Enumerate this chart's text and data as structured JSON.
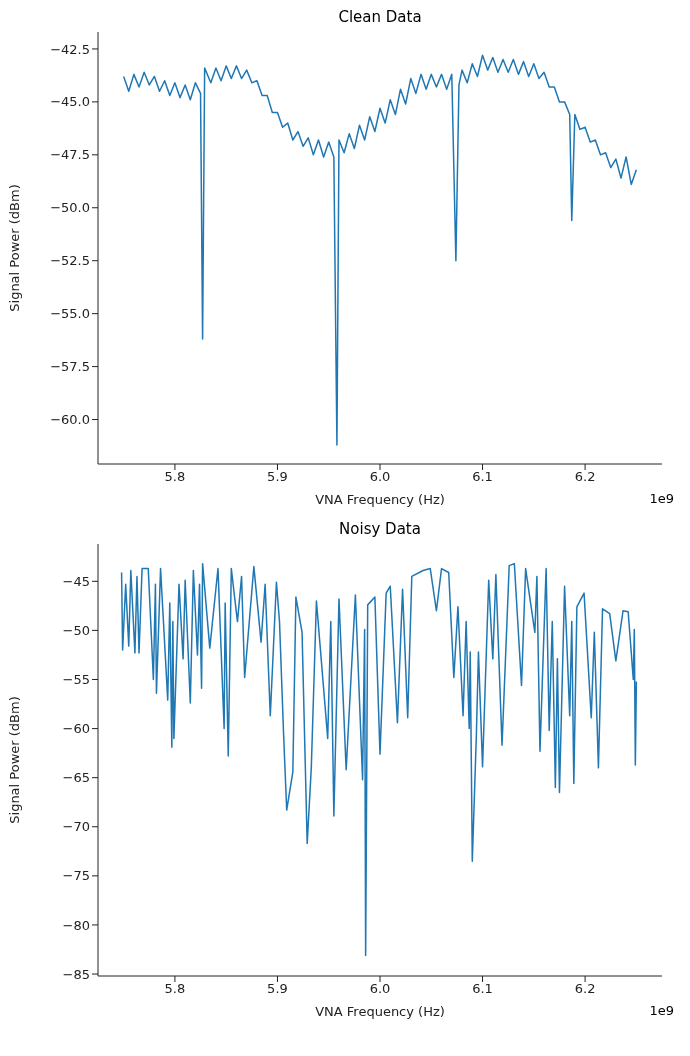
{
  "chart_data": [
    {
      "type": "line",
      "title": "Clean Data",
      "xlabel": "VNA Frequency (Hz)",
      "ylabel": "Signal Power (dBm)",
      "annotations": [
        "1e9"
      ],
      "xlim": [
        5.725,
        6.275
      ],
      "xticks": [
        5.8,
        5.9,
        {
          "value": 6.0,
          "label": "6.0"
        },
        6.1,
        6.2
      ],
      "ylim": [
        -62.1,
        -41.7
      ],
      "yticks": [
        {
          "value": -60,
          "label": "−60.0"
        },
        {
          "value": -57.5,
          "label": "−57.5"
        },
        {
          "value": -55,
          "label": "−55.0"
        },
        {
          "value": -52.5,
          "label": "−52.5"
        },
        {
          "value": -50,
          "label": "−50.0"
        },
        {
          "value": -47.5,
          "label": "−47.5"
        },
        {
          "value": -45,
          "label": "−45.0"
        },
        {
          "value": -42.5,
          "label": "−42.5"
        }
      ],
      "series": [
        {
          "color": "#1f77b4",
          "x": [
            5.75,
            5.755,
            5.76,
            5.765,
            5.77,
            5.775,
            5.78,
            5.785,
            5.79,
            5.795,
            5.8,
            5.805,
            5.81,
            5.815,
            5.82,
            5.825,
            5.827,
            5.829,
            5.835,
            5.84,
            5.845,
            5.85,
            5.855,
            5.86,
            5.865,
            5.87,
            5.875,
            5.88,
            5.885,
            5.89,
            5.895,
            5.9,
            5.905,
            5.91,
            5.915,
            5.92,
            5.925,
            5.93,
            5.935,
            5.94,
            5.945,
            5.95,
            5.955,
            5.958,
            5.96,
            5.965,
            5.97,
            5.975,
            5.98,
            5.985,
            5.99,
            5.995,
            6.0,
            6.005,
            6.01,
            6.015,
            6.02,
            6.025,
            6.03,
            6.035,
            6.04,
            6.045,
            6.05,
            6.055,
            6.06,
            6.065,
            6.07,
            6.074,
            6.077,
            6.08,
            6.085,
            6.09,
            6.095,
            6.1,
            6.105,
            6.11,
            6.115,
            6.12,
            6.125,
            6.13,
            6.135,
            6.14,
            6.145,
            6.15,
            6.155,
            6.16,
            6.165,
            6.17,
            6.175,
            6.18,
            6.185,
            6.187,
            6.19,
            6.195,
            6.2,
            6.205,
            6.21,
            6.215,
            6.22,
            6.225,
            6.23,
            6.235,
            6.24,
            6.245,
            6.25
          ],
          "values": [
            -43.8,
            -44.5,
            -43.7,
            -44.3,
            -43.6,
            -44.2,
            -43.8,
            -44.5,
            -44.0,
            -44.7,
            -44.1,
            -44.8,
            -44.2,
            -44.9,
            -44.1,
            -44.6,
            -56.2,
            -43.4,
            -44.1,
            -43.4,
            -44.0,
            -43.3,
            -43.9,
            -43.3,
            -43.9,
            -43.5,
            -44.1,
            -44.0,
            -44.7,
            -44.7,
            -45.5,
            -45.5,
            -46.2,
            -46.0,
            -46.8,
            -46.4,
            -47.1,
            -46.7,
            -47.5,
            -46.8,
            -47.6,
            -46.9,
            -47.6,
            -61.2,
            -46.8,
            -47.4,
            -46.5,
            -47.2,
            -46.1,
            -46.8,
            -45.7,
            -46.4,
            -45.3,
            -46.0,
            -44.9,
            -45.6,
            -44.4,
            -45.1,
            -43.9,
            -44.6,
            -43.7,
            -44.4,
            -43.7,
            -44.3,
            -43.7,
            -44.4,
            -43.7,
            -52.5,
            -44.2,
            -43.5,
            -44.1,
            -43.2,
            -43.8,
            -42.8,
            -43.5,
            -42.9,
            -43.6,
            -43.0,
            -43.6,
            -43.0,
            -43.7,
            -43.1,
            -43.8,
            -43.2,
            -43.9,
            -43.6,
            -44.3,
            -44.3,
            -45.0,
            -45.0,
            -45.6,
            -50.6,
            -45.6,
            -46.3,
            -46.2,
            -46.9,
            -46.8,
            -47.5,
            -47.4,
            -48.1,
            -47.7,
            -48.6,
            -47.6,
            -48.9,
            -48.2
          ]
        }
      ]
    },
    {
      "type": "line",
      "title": "Noisy Data",
      "xlabel": "VNA Frequency (Hz)",
      "ylabel": "Signal Power (dBm)",
      "annotations": [
        "1e9"
      ],
      "xlim": [
        5.725,
        6.275
      ],
      "xticks": [
        5.8,
        5.9,
        {
          "value": 6.0,
          "label": "6.0"
        },
        6.1,
        6.2
      ],
      "ylim": [
        -85.2,
        -41.2
      ],
      "yticks": [
        {
          "value": -85,
          "label": "−85"
        },
        {
          "value": -80,
          "label": "−80"
        },
        {
          "value": -75,
          "label": "−75"
        },
        {
          "value": -70,
          "label": "−70"
        },
        {
          "value": -65,
          "label": "−65"
        },
        {
          "value": -60,
          "label": "−60"
        },
        {
          "value": -55,
          "label": "−55"
        },
        {
          "value": -50,
          "label": "−50"
        },
        {
          "value": -45,
          "label": "−45"
        }
      ],
      "series": [
        {
          "color": "#1f77b4",
          "x": [
            5.748,
            5.749,
            5.752,
            5.755,
            5.757,
            5.761,
            5.763,
            5.765,
            5.768,
            5.774,
            5.779,
            5.781,
            5.782,
            5.786,
            5.793,
            5.795,
            5.797,
            5.798,
            5.799,
            5.804,
            5.808,
            5.81,
            5.815,
            5.818,
            5.822,
            5.824,
            5.826,
            5.827,
            5.834,
            5.842,
            5.848,
            5.849,
            5.852,
            5.855,
            5.861,
            5.865,
            5.868,
            5.877,
            5.884,
            5.888,
            5.893,
            5.899,
            5.902,
            5.906,
            5.909,
            5.915,
            5.918,
            5.924,
            5.929,
            5.933,
            5.938,
            5.949,
            5.952,
            5.955,
            5.96,
            5.967,
            5.976,
            5.983,
            5.985,
            5.986,
            5.988,
            5.995,
            6.0,
            6.006,
            6.01,
            6.017,
            6.022,
            6.027,
            6.031,
            6.042,
            6.049,
            6.055,
            6.06,
            6.067,
            6.072,
            6.076,
            6.081,
            6.084,
            6.087,
            6.088,
            6.09,
            6.094,
            6.096,
            6.1,
            6.106,
            6.11,
            6.113,
            6.119,
            6.126,
            6.131,
            6.138,
            6.142,
            6.151,
            6.153,
            6.156,
            6.162,
            6.165,
            6.168,
            6.171,
            6.173,
            6.175,
            6.18,
            6.185,
            6.187,
            6.189,
            6.192,
            6.199,
            6.206,
            6.209,
            6.213,
            6.217,
            6.224,
            6.23,
            6.237,
            6.242,
            6.247,
            6.248,
            6.249,
            6.25
          ],
          "values": [
            -44.1,
            -52.0,
            -45.3,
            -51.6,
            -43.9,
            -52.3,
            -44.5,
            -52.3,
            -43.7,
            -43.7,
            -55.0,
            -45.3,
            -56.4,
            -43.7,
            -57.1,
            -47.2,
            -61.9,
            -49.1,
            -61.0,
            -45.3,
            -52.9,
            -44.9,
            -57.4,
            -43.9,
            -52.5,
            -45.3,
            -55.9,
            -43.2,
            -51.8,
            -43.7,
            -60.0,
            -47.2,
            -62.8,
            -43.7,
            -49.1,
            -44.5,
            -54.8,
            -43.5,
            -51.2,
            -45.3,
            -58.7,
            -45.1,
            -49.1,
            -60.6,
            -68.3,
            -64.4,
            -46.6,
            -50.2,
            -71.7,
            -64.0,
            -47.0,
            -61.0,
            -49.1,
            -68.9,
            -46.8,
            -64.2,
            -46.4,
            -65.2,
            -49.9,
            -83.1,
            -47.4,
            -46.6,
            -62.6,
            -46.2,
            -45.5,
            -59.4,
            -45.8,
            -58.9,
            -44.5,
            -43.9,
            -43.7,
            -48.0,
            -43.7,
            -44.1,
            -54.8,
            -47.6,
            -58.7,
            -49.1,
            -60.0,
            -52.2,
            -73.5,
            -60.6,
            -52.2,
            -63.9,
            -44.9,
            -52.9,
            -44.3,
            -61.7,
            -43.4,
            -43.2,
            -55.6,
            -43.7,
            -50.2,
            -44.5,
            -62.3,
            -43.7,
            -60.2,
            -49.1,
            -66.0,
            -52.9,
            -66.5,
            -45.5,
            -58.7,
            -49.1,
            -65.6,
            -47.6,
            -46.2,
            -58.9,
            -50.2,
            -64.0,
            -47.8,
            -48.3,
            -53.1,
            -48.0,
            -48.1,
            -55.0,
            -49.9,
            -63.7,
            -55.2
          ]
        }
      ]
    }
  ]
}
